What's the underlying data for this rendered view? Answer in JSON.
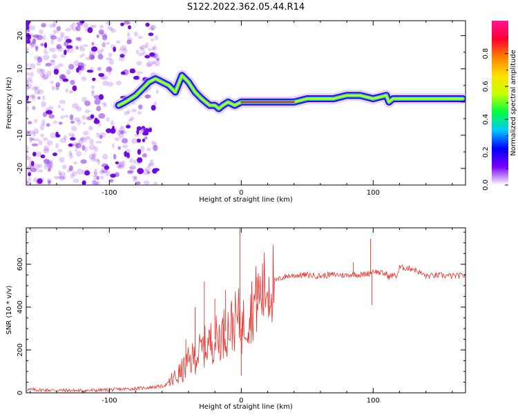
{
  "title": "S122.2022.362.05.44.R14",
  "colors": {
    "snr_line": "#e8302a",
    "spectrum_core": "#e0303c",
    "spectrum_mid": "#00c8e8",
    "spectrum_edge": "#3a00e0",
    "noise": "#8a2be2"
  },
  "chart_data": [
    {
      "type": "heatmap",
      "xlabel": "Height of straight line (km)",
      "ylabel": "Frequency (Hz)",
      "xlim": [
        -163,
        170
      ],
      "ylim": [
        -25,
        24.5
      ],
      "xticks": [
        -100,
        0,
        100
      ],
      "yticks": [
        -20,
        -10,
        0,
        10,
        20
      ],
      "x_tick_labels": [
        "-100",
        "0",
        "100"
      ],
      "y_tick_labels": [
        "-20",
        "-10",
        "0",
        "10",
        "20"
      ],
      "colorbar": {
        "label": "Normalized spectral amplitude",
        "range": [
          0.0,
          1.0
        ],
        "ticks": [
          "0.0",
          "0.2",
          "0.4",
          "0.6",
          "0.8"
        ],
        "colormap": [
          "#ffffff",
          "#7a00ff",
          "#0000ff",
          "#00c8ff",
          "#00ff40",
          "#c8ff00",
          "#ffe000",
          "#ff8000",
          "#ff0030",
          "#ff1493"
        ]
      },
      "ridge": {
        "x": [
          -93,
          -88,
          -84,
          -80,
          -75,
          -70,
          -65,
          -60,
          -55,
          -50,
          -45,
          -40,
          -35,
          -30,
          -27,
          -24,
          -20,
          -17,
          -14,
          -10,
          -5,
          0,
          10,
          20,
          30,
          40,
          50,
          60,
          70,
          80,
          90,
          100,
          110,
          112,
          115,
          120,
          130,
          140,
          150,
          160,
          168
        ],
        "y": [
          -1,
          0,
          1,
          2,
          4,
          6,
          7,
          6,
          5,
          3,
          8,
          6,
          3,
          1,
          0,
          -1,
          -1,
          -2,
          -1,
          0,
          -1,
          0,
          0,
          0,
          0,
          0,
          1,
          1,
          1,
          2,
          2,
          1,
          2,
          0,
          1,
          1,
          1,
          1,
          1,
          1,
          1
        ]
      }
    },
    {
      "type": "line",
      "xlabel": "Height of straight line (km)",
      "ylabel": "SNR (10 * v/v)",
      "xlim": [
        -163,
        170
      ],
      "ylim": [
        0,
        770
      ],
      "xticks": [
        -100,
        0,
        100
      ],
      "yticks": [
        0,
        200,
        400,
        600
      ],
      "x_tick_labels": [
        "-100",
        "0",
        "100"
      ],
      "y_tick_labels": [
        "0",
        "200",
        "400",
        "600"
      ],
      "series": [
        {
          "x": [
            -163,
            -140,
            -120,
            -100,
            -80,
            -70,
            -60,
            -55,
            -50,
            -45,
            -40,
            -35,
            -30,
            -25,
            -20,
            -15,
            -10,
            -5,
            -1,
            0,
            5,
            10,
            15,
            20,
            25,
            30,
            35,
            40,
            50,
            60,
            70,
            80,
            85,
            90,
            95,
            98,
            100,
            105,
            110,
            112,
            115,
            118,
            120,
            130,
            140,
            150,
            160,
            170
          ],
          "y": [
            15,
            12,
            10,
            14,
            20,
            25,
            30,
            45,
            70,
            100,
            140,
            170,
            200,
            230,
            250,
            270,
            300,
            330,
            350,
            300,
            360,
            420,
            460,
            500,
            520,
            535,
            545,
            548,
            550,
            545,
            552,
            548,
            555,
            550,
            555,
            560,
            570,
            560,
            555,
            540,
            550,
            545,
            585,
            580,
            545,
            548,
            545,
            548
          ],
          "spikes": [
            {
              "x": -42,
              "y": 250
            },
            {
              "x": -35,
              "y": 400
            },
            {
              "x": -28,
              "y": 520
            },
            {
              "x": -20,
              "y": 440
            },
            {
              "x": -12,
              "y": 480
            },
            {
              "x": -1,
              "y": 770
            },
            {
              "x": 0,
              "y": 80
            },
            {
              "x": 8,
              "y": 520
            },
            {
              "x": 12,
              "y": 540
            },
            {
              "x": 85,
              "y": 610
            },
            {
              "x": 98,
              "y": 720
            },
            {
              "x": 99,
              "y": 410
            }
          ]
        }
      ]
    }
  ]
}
